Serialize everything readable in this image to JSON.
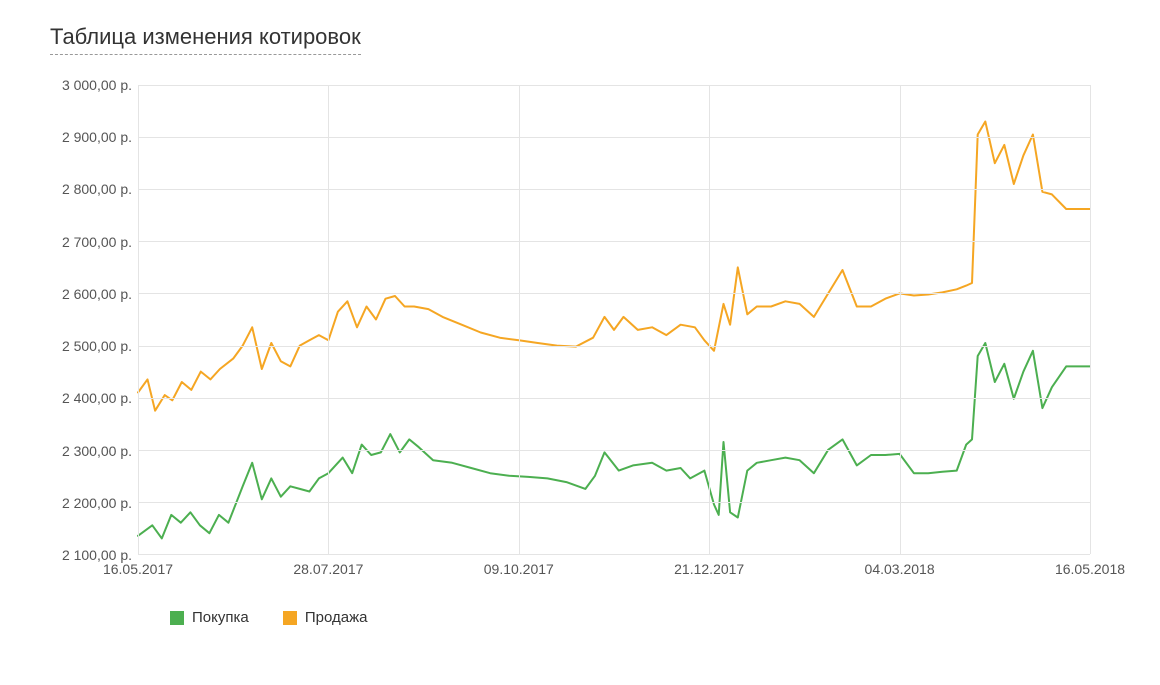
{
  "title": "Таблица изменения котировок",
  "chart": {
    "type": "line",
    "background_color": "#ffffff",
    "grid_color": "#e4e4e4",
    "axis_text_color": "#555555",
    "title_color": "#333333",
    "title_fontsize": 22,
    "label_fontsize": 14,
    "line_width": 2,
    "ylim": [
      2100,
      3000
    ],
    "ytick_step": 100,
    "y_labels": [
      "2 100,00 р.",
      "2 200,00 р.",
      "2 300,00 р.",
      "2 400,00 р.",
      "2 500,00 р.",
      "2 600,00 р.",
      "2 700,00 р.",
      "2 800,00 р.",
      "2 900,00 р.",
      "3 000,00 р."
    ],
    "x_ticks": [
      {
        "pos": 0.0,
        "label": "16.05.2017"
      },
      {
        "pos": 0.2,
        "label": "28.07.2017"
      },
      {
        "pos": 0.4,
        "label": "09.10.2017"
      },
      {
        "pos": 0.6,
        "label": "21.12.2017"
      },
      {
        "pos": 0.8,
        "label": "04.03.2018"
      },
      {
        "pos": 1.0,
        "label": "16.05.2018"
      }
    ],
    "series": [
      {
        "name": "Покупка",
        "color": "#4caf50",
        "data": [
          [
            0.0,
            2135
          ],
          [
            0.015,
            2155
          ],
          [
            0.025,
            2130
          ],
          [
            0.035,
            2175
          ],
          [
            0.045,
            2160
          ],
          [
            0.055,
            2180
          ],
          [
            0.065,
            2155
          ],
          [
            0.075,
            2140
          ],
          [
            0.085,
            2175
          ],
          [
            0.095,
            2160
          ],
          [
            0.11,
            2230
          ],
          [
            0.12,
            2275
          ],
          [
            0.13,
            2205
          ],
          [
            0.14,
            2245
          ],
          [
            0.15,
            2210
          ],
          [
            0.16,
            2230
          ],
          [
            0.17,
            2225
          ],
          [
            0.18,
            2220
          ],
          [
            0.19,
            2245
          ],
          [
            0.2,
            2255
          ],
          [
            0.215,
            2285
          ],
          [
            0.225,
            2255
          ],
          [
            0.235,
            2310
          ],
          [
            0.245,
            2290
          ],
          [
            0.255,
            2295
          ],
          [
            0.265,
            2330
          ],
          [
            0.275,
            2295
          ],
          [
            0.285,
            2320
          ],
          [
            0.295,
            2305
          ],
          [
            0.31,
            2280
          ],
          [
            0.33,
            2275
          ],
          [
            0.35,
            2265
          ],
          [
            0.37,
            2255
          ],
          [
            0.39,
            2250
          ],
          [
            0.41,
            2248
          ],
          [
            0.43,
            2245
          ],
          [
            0.45,
            2238
          ],
          [
            0.47,
            2225
          ],
          [
            0.48,
            2250
          ],
          [
            0.49,
            2295
          ],
          [
            0.505,
            2260
          ],
          [
            0.52,
            2270
          ],
          [
            0.54,
            2275
          ],
          [
            0.555,
            2260
          ],
          [
            0.57,
            2265
          ],
          [
            0.58,
            2245
          ],
          [
            0.595,
            2260
          ],
          [
            0.605,
            2195
          ],
          [
            0.61,
            2175
          ],
          [
            0.615,
            2315
          ],
          [
            0.622,
            2180
          ],
          [
            0.63,
            2170
          ],
          [
            0.64,
            2260
          ],
          [
            0.65,
            2275
          ],
          [
            0.665,
            2280
          ],
          [
            0.68,
            2285
          ],
          [
            0.695,
            2280
          ],
          [
            0.71,
            2255
          ],
          [
            0.725,
            2300
          ],
          [
            0.74,
            2320
          ],
          [
            0.755,
            2270
          ],
          [
            0.77,
            2290
          ],
          [
            0.785,
            2290
          ],
          [
            0.8,
            2292
          ],
          [
            0.815,
            2255
          ],
          [
            0.83,
            2255
          ],
          [
            0.845,
            2258
          ],
          [
            0.86,
            2260
          ],
          [
            0.87,
            2310
          ],
          [
            0.876,
            2320
          ],
          [
            0.882,
            2480
          ],
          [
            0.89,
            2505
          ],
          [
            0.9,
            2430
          ],
          [
            0.91,
            2465
          ],
          [
            0.92,
            2398
          ],
          [
            0.93,
            2450
          ],
          [
            0.94,
            2490
          ],
          [
            0.95,
            2380
          ],
          [
            0.96,
            2420
          ],
          [
            0.975,
            2460
          ],
          [
            0.99,
            2460
          ],
          [
            1.0,
            2460
          ]
        ]
      },
      {
        "name": "Продажа",
        "color": "#f5a623",
        "data": [
          [
            0.0,
            2410
          ],
          [
            0.01,
            2435
          ],
          [
            0.018,
            2375
          ],
          [
            0.028,
            2405
          ],
          [
            0.036,
            2395
          ],
          [
            0.046,
            2430
          ],
          [
            0.056,
            2415
          ],
          [
            0.066,
            2450
          ],
          [
            0.076,
            2435
          ],
          [
            0.086,
            2455
          ],
          [
            0.1,
            2475
          ],
          [
            0.11,
            2500
          ],
          [
            0.12,
            2535
          ],
          [
            0.13,
            2455
          ],
          [
            0.14,
            2505
          ],
          [
            0.15,
            2470
          ],
          [
            0.16,
            2460
          ],
          [
            0.17,
            2500
          ],
          [
            0.18,
            2510
          ],
          [
            0.19,
            2520
          ],
          [
            0.2,
            2510
          ],
          [
            0.21,
            2565
          ],
          [
            0.22,
            2585
          ],
          [
            0.23,
            2535
          ],
          [
            0.24,
            2575
          ],
          [
            0.25,
            2550
          ],
          [
            0.26,
            2590
          ],
          [
            0.27,
            2595
          ],
          [
            0.28,
            2575
          ],
          [
            0.29,
            2575
          ],
          [
            0.305,
            2570
          ],
          [
            0.32,
            2555
          ],
          [
            0.34,
            2540
          ],
          [
            0.36,
            2525
          ],
          [
            0.38,
            2515
          ],
          [
            0.4,
            2510
          ],
          [
            0.42,
            2505
          ],
          [
            0.44,
            2500
          ],
          [
            0.46,
            2498
          ],
          [
            0.478,
            2515
          ],
          [
            0.49,
            2555
          ],
          [
            0.5,
            2530
          ],
          [
            0.51,
            2555
          ],
          [
            0.525,
            2530
          ],
          [
            0.54,
            2535
          ],
          [
            0.555,
            2520
          ],
          [
            0.57,
            2540
          ],
          [
            0.585,
            2535
          ],
          [
            0.595,
            2510
          ],
          [
            0.605,
            2490
          ],
          [
            0.615,
            2580
          ],
          [
            0.622,
            2540
          ],
          [
            0.63,
            2650
          ],
          [
            0.64,
            2560
          ],
          [
            0.65,
            2575
          ],
          [
            0.665,
            2575
          ],
          [
            0.68,
            2585
          ],
          [
            0.695,
            2580
          ],
          [
            0.71,
            2555
          ],
          [
            0.725,
            2600
          ],
          [
            0.74,
            2645
          ],
          [
            0.755,
            2575
          ],
          [
            0.77,
            2575
          ],
          [
            0.785,
            2590
          ],
          [
            0.8,
            2600
          ],
          [
            0.815,
            2596
          ],
          [
            0.83,
            2598
          ],
          [
            0.845,
            2602
          ],
          [
            0.86,
            2608
          ],
          [
            0.87,
            2615
          ],
          [
            0.876,
            2620
          ],
          [
            0.882,
            2905
          ],
          [
            0.89,
            2930
          ],
          [
            0.9,
            2850
          ],
          [
            0.91,
            2885
          ],
          [
            0.92,
            2810
          ],
          [
            0.93,
            2865
          ],
          [
            0.94,
            2905
          ],
          [
            0.95,
            2795
          ],
          [
            0.96,
            2790
          ],
          [
            0.975,
            2762
          ],
          [
            0.99,
            2762
          ],
          [
            1.0,
            2762
          ]
        ]
      }
    ]
  },
  "legend": {
    "buy": {
      "label": "Покупка",
      "color": "#4caf50"
    },
    "sell": {
      "label": "Продажа",
      "color": "#f5a623"
    }
  }
}
